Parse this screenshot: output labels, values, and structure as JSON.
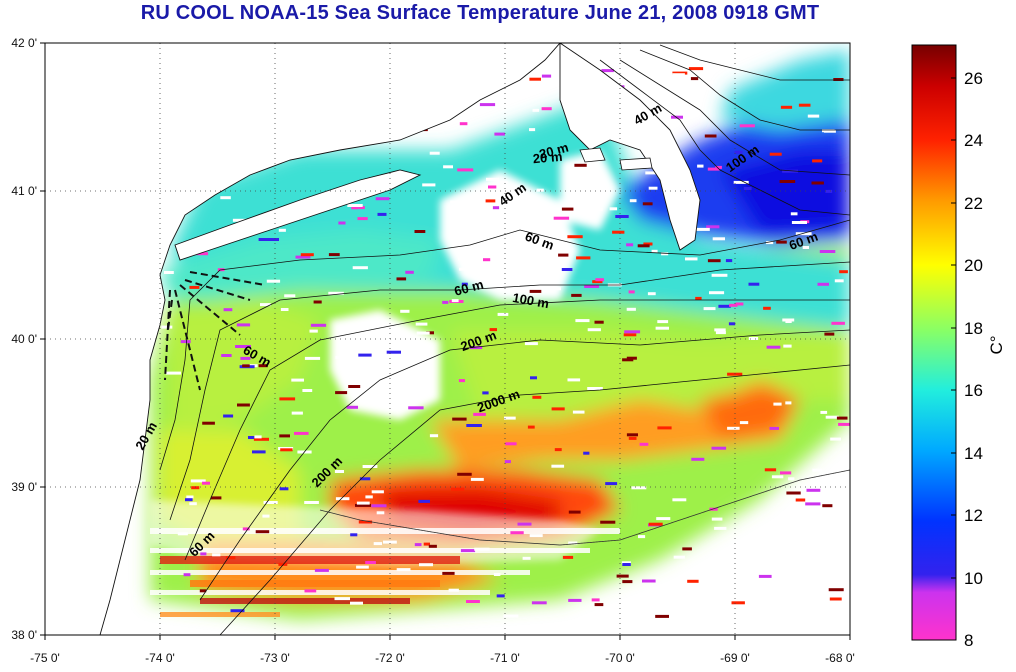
{
  "title": "RU COOL  NOAA-15 Sea Surface Temperature June 21, 2008 0918 GMT",
  "map": {
    "x_ticks": [
      "-75 0'",
      "-74 0'",
      "-73 0'",
      "-72 0'",
      "-71 0'",
      "-70 0'",
      "-69 0'",
      "-68 0'"
    ],
    "y_ticks": [
      "42 0'",
      "41 0'",
      "40 0'",
      "39 0'",
      "38 0'"
    ],
    "isobath_labels": [
      {
        "text": "20 m"
      },
      {
        "text": "40 m"
      },
      {
        "text": "100 m"
      },
      {
        "text": "60 m"
      },
      {
        "text": "20 m"
      },
      {
        "text": "40 m"
      },
      {
        "text": "60 m"
      },
      {
        "text": "60 m"
      },
      {
        "text": "100 m"
      },
      {
        "text": "200 m"
      },
      {
        "text": "60 m"
      },
      {
        "text": "2000 m"
      },
      {
        "text": "20 m"
      },
      {
        "text": "200 m"
      },
      {
        "text": "60 m"
      }
    ]
  },
  "colorbar": {
    "ticks": [
      "26",
      "24",
      "22",
      "20",
      "18",
      "16",
      "14",
      "12",
      "10",
      "8"
    ],
    "unit": "C°",
    "min": 8,
    "max": 27,
    "colors": {
      "min": "#ff33cc",
      "mid_low": "#0000ff",
      "mid": "#00ffff",
      "mid_high": "#ffff00",
      "high": "#ff0000",
      "max": "#800000"
    }
  }
}
